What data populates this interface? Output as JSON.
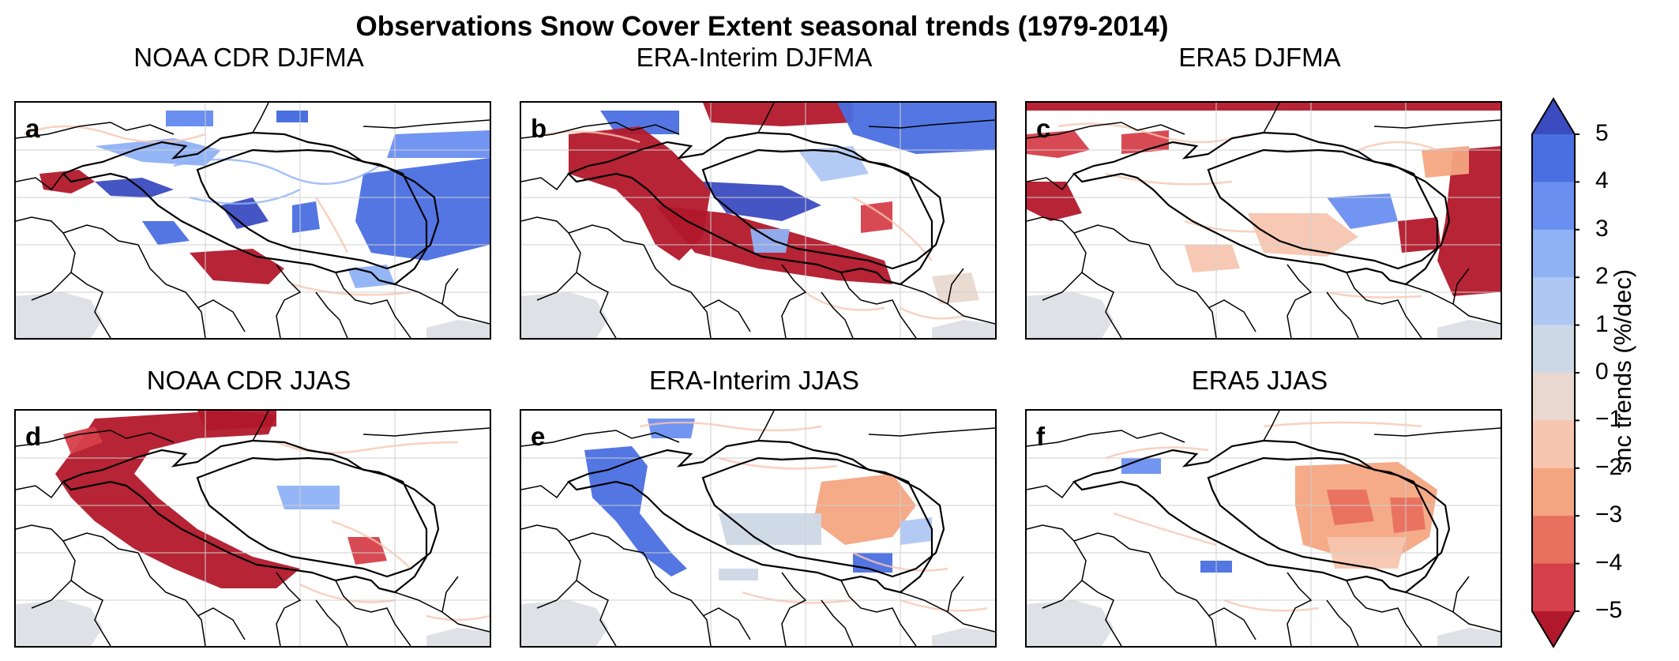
{
  "figure": {
    "title": "Observations Snow Cover Extent seasonal trends (1979-2014)"
  },
  "panels": [
    {
      "letter": "a",
      "title": "NOAA CDR DJFMA"
    },
    {
      "letter": "b",
      "title": "ERA-Interim DJFMA"
    },
    {
      "letter": "c",
      "title": "ERA5 DJFMA"
    },
    {
      "letter": "d",
      "title": "NOAA CDR JJAS"
    },
    {
      "letter": "e",
      "title": "ERA-Interim JJAS"
    },
    {
      "letter": "f",
      "title": "ERA5 JJAS"
    }
  ],
  "colorbar": {
    "label": "snc trends (%/dec)",
    "ticks": [
      "5",
      "4",
      "3",
      "2",
      "1",
      "0",
      "−1",
      "−2",
      "−3",
      "−4",
      "−5"
    ],
    "extend": "both",
    "colors": [
      "#b2182b",
      "#d6404a",
      "#e8705e",
      "#f4a582",
      "#f7c6b0",
      "#e8d8d0",
      "#cdd8e6",
      "#afc8f3",
      "#8fb2f5",
      "#6a8ff0",
      "#4a6fe0",
      "#3b4cc0"
    ]
  },
  "colors": {
    "ocean": "#dfe1e6",
    "border": "#000000",
    "grid": "#cfcfcf"
  }
}
